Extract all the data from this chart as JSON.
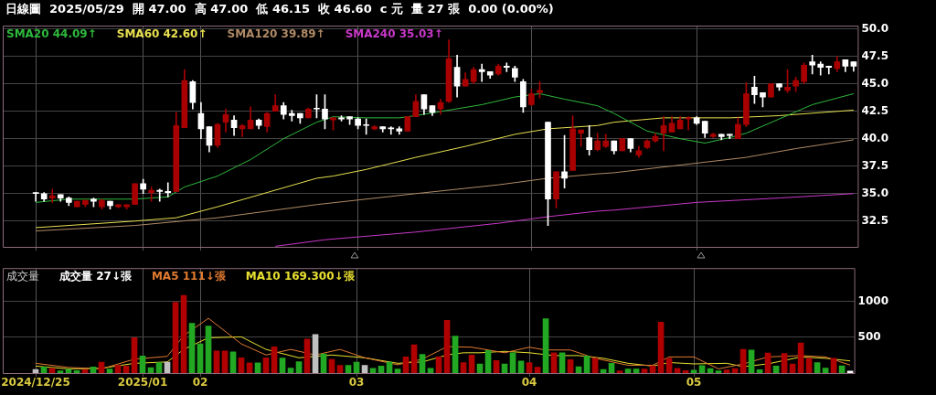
{
  "chart_data": [
    {
      "type": "candlestick",
      "title": "日線圖  2025/05/29  開 47.00  高 47.00  低 46.15  收 46.60  c 元  量 27 張  0.00 (0.00%)",
      "categories": [
        "2024/12/25",
        null,
        null,
        null,
        null,
        null,
        null,
        null,
        null,
        null,
        null,
        null,
        null,
        "2025/01",
        null,
        null,
        null,
        null,
        null,
        null,
        "02",
        null,
        null,
        null,
        null,
        null,
        null,
        null,
        null,
        null,
        null,
        null,
        null,
        null,
        null,
        null,
        null,
        null,
        null,
        "03",
        null,
        null,
        null,
        null,
        null,
        null,
        null,
        null,
        null,
        null,
        null,
        null,
        null,
        null,
        null,
        null,
        null,
        null,
        null,
        null,
        "04",
        null,
        null,
        null,
        null,
        null,
        null,
        null,
        null,
        null,
        null,
        null,
        null,
        null,
        null,
        null,
        null,
        null,
        null,
        null,
        "05",
        null,
        null,
        null,
        null,
        null,
        null,
        null,
        null,
        null,
        null,
        null,
        null,
        null,
        null,
        null,
        null,
        null,
        null,
        null
      ],
      "ohlc": [
        [
          35.1,
          35.1,
          34.3,
          35.0
        ],
        [
          35.0,
          35.1,
          34.3,
          34.5
        ],
        [
          34.6,
          35.4,
          34.2,
          34.8
        ],
        [
          34.9,
          34.9,
          34.3,
          34.6
        ],
        [
          34.6,
          34.7,
          33.9,
          34.2
        ],
        [
          33.8,
          34.3,
          33.8,
          34.3
        ],
        [
          34.0,
          34.4,
          33.8,
          34.4
        ],
        [
          34.5,
          34.6,
          33.8,
          34.3
        ],
        [
          33.8,
          34.5,
          33.6,
          34.4
        ],
        [
          34.3,
          34.3,
          33.6,
          33.9
        ],
        [
          33.8,
          34.0,
          33.7,
          34.0
        ],
        [
          33.8,
          34.0,
          33.6,
          34.0
        ],
        [
          34.0,
          35.9,
          34.0,
          35.9
        ],
        [
          35.9,
          36.3,
          35.0,
          35.4
        ],
        [
          35.1,
          35.6,
          34.3,
          35.3
        ],
        [
          35.3,
          35.4,
          34.3,
          35.2
        ],
        [
          35.2,
          36.0,
          34.7,
          35.1
        ],
        [
          35.2,
          42.4,
          35.2,
          41.2
        ],
        [
          41.0,
          46.3,
          41.0,
          45.3
        ],
        [
          45.2,
          45.3,
          42.7,
          43.3
        ],
        [
          42.3,
          43.3,
          40.0,
          40.9
        ],
        [
          41.1,
          41.1,
          38.8,
          39.4
        ],
        [
          39.4,
          41.4,
          39.2,
          41.3
        ],
        [
          41.5,
          42.7,
          40.6,
          42.2
        ],
        [
          41.7,
          42.1,
          40.3,
          41.0
        ],
        [
          40.9,
          41.3,
          40.2,
          41.2
        ],
        [
          40.9,
          42.9,
          40.9,
          41.7
        ],
        [
          41.7,
          41.8,
          40.9,
          41.2
        ],
        [
          41.1,
          42.4,
          40.6,
          42.3
        ],
        [
          42.5,
          44.0,
          42.5,
          43.0
        ],
        [
          43.0,
          43.3,
          41.8,
          42.2
        ],
        [
          42.3,
          42.6,
          41.6,
          42.1
        ],
        [
          42.3,
          42.3,
          41.4,
          41.9
        ],
        [
          41.9,
          42.8,
          41.9,
          42.7
        ],
        [
          42.7,
          44.0,
          41.9,
          42.7
        ],
        [
          42.7,
          44.0,
          40.9,
          41.8
        ],
        [
          41.7,
          41.9,
          40.8,
          41.9
        ],
        [
          41.9,
          42.1,
          41.6,
          41.8
        ],
        [
          42.0,
          42.0,
          41.3,
          41.8
        ],
        [
          41.8,
          41.9,
          40.9,
          41.2
        ],
        [
          41.2,
          41.8,
          40.4,
          41.2
        ],
        [
          40.9,
          41.2,
          40.8,
          41.1
        ],
        [
          41.1,
          41.1,
          40.6,
          40.9
        ],
        [
          40.9,
          41.1,
          40.4,
          40.9
        ],
        [
          40.9,
          41.1,
          40.4,
          40.7
        ],
        [
          40.7,
          42.0,
          40.7,
          42.0
        ],
        [
          42.0,
          44.0,
          42.0,
          43.4
        ],
        [
          44.0,
          44.0,
          42.2,
          42.7
        ],
        [
          43.0,
          43.0,
          42.1,
          42.4
        ],
        [
          42.7,
          43.6,
          42.2,
          43.3
        ],
        [
          43.4,
          49.0,
          43.3,
          47.3
        ],
        [
          46.5,
          47.6,
          43.8,
          44.8
        ],
        [
          44.8,
          46.0,
          44.8,
          45.4
        ],
        [
          45.2,
          46.5,
          45.0,
          46.3
        ],
        [
          46.3,
          46.8,
          45.2,
          46.1
        ],
        [
          46.1,
          46.1,
          45.5,
          45.8
        ],
        [
          45.9,
          46.8,
          45.8,
          46.6
        ],
        [
          46.6,
          46.9,
          46.1,
          46.5
        ],
        [
          46.4,
          46.6,
          45.2,
          45.6
        ],
        [
          45.2,
          45.4,
          42.4,
          42.9
        ],
        [
          43.1,
          44.5,
          43.0,
          44.1
        ],
        [
          44.2,
          45.2,
          43.7,
          44.4
        ],
        [
          41.5,
          41.5,
          32.1,
          34.5
        ],
        [
          34.5,
          37.0,
          33.7,
          37.0
        ],
        [
          37.0,
          40.3,
          35.5,
          36.4
        ],
        [
          37.1,
          42.1,
          37.1,
          40.9
        ],
        [
          40.5,
          40.8,
          39.3,
          40.8
        ],
        [
          40.1,
          41.2,
          38.5,
          39.0
        ],
        [
          39.0,
          40.5,
          38.9,
          39.8
        ],
        [
          39.3,
          40.4,
          39.2,
          39.8
        ],
        [
          39.8,
          39.8,
          38.6,
          38.9
        ],
        [
          38.9,
          40.0,
          38.9,
          40.0
        ],
        [
          40.0,
          40.0,
          38.8,
          39.1
        ],
        [
          38.5,
          39.3,
          38.3,
          38.9
        ],
        [
          39.2,
          39.9,
          39.1,
          39.8
        ],
        [
          39.8,
          40.5,
          39.7,
          40.2
        ],
        [
          40.5,
          42.0,
          38.9,
          41.2
        ],
        [
          40.6,
          42.0,
          40.6,
          41.4
        ],
        [
          40.9,
          42.0,
          40.9,
          41.7
        ],
        [
          41.8,
          42.0,
          40.8,
          41.9
        ],
        [
          41.9,
          42.0,
          41.3,
          41.4
        ],
        [
          41.6,
          41.6,
          40.1,
          40.5
        ],
        [
          40.2,
          40.5,
          40.1,
          40.4
        ],
        [
          40.4,
          40.4,
          39.9,
          40.2
        ],
        [
          40.4,
          40.4,
          40.0,
          40.3
        ],
        [
          40.0,
          41.9,
          40.0,
          41.3
        ],
        [
          41.3,
          45.1,
          41.1,
          44.1
        ],
        [
          44.7,
          45.7,
          43.2,
          44.0
        ],
        [
          44.2,
          44.2,
          42.9,
          43.8
        ],
        [
          43.8,
          45.0,
          43.8,
          45.0
        ],
        [
          45.0,
          45.0,
          44.4,
          44.7
        ],
        [
          44.4,
          46.3,
          44.2,
          44.7
        ],
        [
          44.8,
          45.6,
          44.3,
          45.3
        ],
        [
          45.2,
          46.9,
          45.0,
          46.7
        ],
        [
          47.0,
          47.6,
          45.9,
          46.7
        ],
        [
          46.8,
          47.0,
          45.8,
          46.5
        ],
        [
          46.6,
          46.6,
          45.9,
          46.5
        ],
        [
          46.4,
          47.5,
          46.1,
          47.0
        ],
        [
          47.2,
          47.2,
          46.1,
          46.6
        ],
        [
          47.0,
          47.0,
          46.15,
          46.6
        ]
      ],
      "series": [
        {
          "name": "SMA20 44.09↑",
          "type": "line",
          "color": "#2eb83c",
          "values": [
            34.2,
            null,
            null,
            null,
            34.5,
            null,
            null,
            null,
            34.5,
            null,
            null,
            null,
            34.5,
            null,
            null,
            null,
            34.7,
            null,
            35.6,
            null,
            null,
            null,
            36.6,
            null,
            null,
            null,
            38.1,
            null,
            null,
            null,
            40.0,
            null,
            null,
            null,
            41.5,
            null,
            42.0,
            null,
            null,
            null,
            41.9,
            null,
            null,
            null,
            41.9,
            null,
            42.1,
            null,
            null,
            null,
            42.6,
            null,
            null,
            null,
            43.1,
            null,
            null,
            null,
            43.8,
            null,
            null,
            44.1,
            null,
            null,
            43.6,
            null,
            null,
            null,
            43.0,
            null,
            42.3,
            null,
            null,
            null,
            40.7,
            null,
            null,
            null,
            40.0,
            null,
            null,
            39.6,
            null,
            null,
            40.1,
            null,
            40.5,
            null,
            null,
            null,
            41.8,
            null,
            null,
            null,
            43.1,
            null,
            null,
            null,
            null,
            44.1
          ]
        },
        {
          "name": "SMA60 42.60↑",
          "type": "line",
          "color": "#e8e050",
          "values": [
            31.9,
            null,
            null,
            null,
            null,
            null,
            null,
            null,
            null,
            null,
            null,
            null,
            32.5,
            null,
            null,
            null,
            null,
            32.8,
            null,
            null,
            null,
            null,
            33.8,
            null,
            null,
            null,
            null,
            null,
            35.1,
            null,
            null,
            null,
            null,
            null,
            36.4,
            null,
            36.6,
            null,
            null,
            null,
            37.2,
            null,
            null,
            null,
            null,
            null,
            38.3,
            null,
            null,
            null,
            null,
            null,
            39.3,
            null,
            null,
            null,
            null,
            null,
            40.4,
            null,
            null,
            null,
            40.9,
            null,
            null,
            null,
            null,
            null,
            41.2,
            null,
            41.5,
            null,
            null,
            null,
            null,
            null,
            41.9,
            null,
            null,
            null,
            null,
            null,
            null,
            null,
            41.9,
            null,
            null,
            null,
            null,
            null,
            42.1,
            null,
            null,
            null,
            null,
            null,
            null,
            null,
            null,
            42.6
          ]
        },
        {
          "name": "SMA120 39.89↑",
          "type": "line",
          "color": "#b08a66",
          "values": [
            31.6,
            null,
            null,
            null,
            null,
            null,
            null,
            null,
            null,
            null,
            null,
            null,
            32.1,
            null,
            null,
            null,
            null,
            null,
            null,
            null,
            null,
            null,
            32.8,
            null,
            null,
            null,
            null,
            null,
            null,
            null,
            null,
            null,
            null,
            null,
            34.0,
            null,
            null,
            null,
            null,
            null,
            null,
            null,
            null,
            null,
            null,
            null,
            35.0,
            null,
            null,
            null,
            null,
            null,
            null,
            null,
            null,
            null,
            35.8,
            null,
            null,
            null,
            null,
            null,
            36.4,
            null,
            null,
            null,
            null,
            null,
            36.8,
            null,
            36.9,
            null,
            null,
            null,
            null,
            null,
            null,
            null,
            37.6,
            null,
            null,
            null,
            null,
            null,
            null,
            null,
            38.3,
            null,
            null,
            null,
            null,
            null,
            39.1,
            null,
            null,
            null,
            null,
            null,
            null,
            39.9
          ]
        },
        {
          "name": "SMA240 35.03↑",
          "type": "line",
          "color": "#c838c8",
          "values": [
            null,
            null,
            null,
            null,
            null,
            null,
            null,
            null,
            null,
            null,
            null,
            null,
            null,
            null,
            null,
            null,
            null,
            null,
            null,
            null,
            null,
            null,
            null,
            null,
            null,
            null,
            null,
            null,
            null,
            30.2,
            null,
            null,
            null,
            null,
            null,
            30.8,
            null,
            null,
            null,
            null,
            null,
            null,
            null,
            null,
            null,
            null,
            31.5,
            null,
            null,
            null,
            null,
            null,
            null,
            null,
            null,
            null,
            32.3,
            null,
            null,
            null,
            null,
            null,
            32.9,
            null,
            null,
            null,
            null,
            null,
            33.4,
            null,
            33.5,
            null,
            null,
            null,
            null,
            null,
            null,
            null,
            null,
            null,
            34.2,
            null,
            null,
            null,
            null,
            null,
            null,
            null,
            null,
            null,
            34.6,
            null,
            null,
            null,
            null,
            null,
            null,
            null,
            null,
            35.0
          ]
        }
      ],
      "ylim": [
        30.15,
        50.3
      ],
      "yticks": [
        32.5,
        {
          "value": 35,
          "label": "35.0"
        },
        37.5,
        {
          "value": 40,
          "label": "40.0"
        },
        42.5,
        {
          "value": 45,
          "label": "45.0"
        },
        47.5,
        {
          "value": 50,
          "label": "50.0"
        }
      ],
      "grid": true,
      "tick_labels": "y",
      "marker": "none"
    },
    {
      "type": "bar",
      "title": "成交量",
      "annotations": [
        "成交量 27↓張"
      ],
      "categories": [
        "2024/12/25",
        null,
        null,
        null,
        null,
        null,
        null,
        null,
        null,
        null,
        null,
        null,
        null,
        "2025/01",
        null,
        null,
        null,
        null,
        null,
        null,
        "02",
        null,
        null,
        null,
        null,
        null,
        null,
        null,
        null,
        null,
        null,
        null,
        null,
        null,
        null,
        null,
        null,
        null,
        null,
        "03",
        null,
        null,
        null,
        null,
        null,
        null,
        null,
        null,
        null,
        null,
        null,
        null,
        null,
        null,
        null,
        null,
        null,
        null,
        null,
        null,
        "04",
        null,
        null,
        null,
        null,
        null,
        null,
        null,
        null,
        null,
        null,
        null,
        null,
        null,
        null,
        null,
        null,
        null,
        null,
        null,
        "05",
        null,
        null,
        null,
        null,
        null,
        null,
        null,
        null,
        null,
        null,
        null,
        null,
        null,
        null,
        null,
        null,
        null,
        null,
        null
      ],
      "series": [
        {
          "colors": [
            "#c0c0c0",
            "#22a822",
            "#b00000",
            "#22a822",
            "#22a822",
            "#22a822",
            "#b00000",
            "#22a822",
            "#b00000",
            "#22a822",
            "#b00000",
            "#b00000",
            "#b00000",
            "#22a822",
            "#22a822",
            "#22a822",
            "#c0c0c0",
            "#b00000",
            "#b00000",
            "#22a822",
            "#22a822",
            "#22a822",
            "#b00000",
            "#b00000",
            "#22a822",
            "#b00000",
            "#b00000",
            "#22a822",
            "#b00000",
            "#b00000",
            "#22a822",
            "#22a822",
            "#22a822",
            "#b00000",
            "#c0c0c0",
            "#22a822",
            "#b00000",
            "#b00000",
            "#22a822",
            "#22a822",
            "#c0c0c0",
            "#22a822",
            "#22a822",
            "#22a822",
            "#22a822",
            "#b00000",
            "#b00000",
            "#22a822",
            "#22a822",
            "#b00000",
            "#b00000",
            "#22a822",
            "#b00000",
            "#b00000",
            "#22a822",
            "#22a822",
            "#b00000",
            "#22a822",
            "#22a822",
            "#22a822",
            "#b00000",
            "#b00000",
            "#22a822",
            "#b00000",
            "#22a822",
            "#b00000",
            "#22a822",
            "#22a822",
            "#b00000",
            "#22a822",
            "#22a822",
            "#b00000",
            "#22a822",
            "#22a822",
            "#b00000",
            "#b00000",
            "#b00000",
            "#b00000",
            "#b00000",
            "#b00000",
            "#22a822",
            "#22a822",
            "#22a822",
            "#22a822",
            "#b00000",
            "#b00000",
            "#b00000",
            "#22a822",
            "#22a822",
            "#b00000",
            "#22a822",
            "#b00000",
            "#b00000",
            "#b00000",
            "#b00000",
            "#22a822",
            "#22a822",
            "#b00000",
            "#22a822",
            "#ffffff"
          ],
          "values": [
            50,
            85,
            66,
            31,
            54,
            35,
            47,
            85,
            151,
            58,
            109,
            97,
            493,
            237,
            74,
            147,
            151,
            989,
            1083,
            695,
            407,
            656,
            307,
            307,
            295,
            213,
            144,
            144,
            213,
            365,
            210,
            70,
            159,
            473,
            539,
            268,
            190,
            109,
            109,
            151,
            109,
            66,
            97,
            151,
            58,
            225,
            396,
            260,
            66,
            229,
            737,
            516,
            147,
            252,
            128,
            314,
            175,
            128,
            283,
            167,
            147,
            81,
            757,
            283,
            283,
            186,
            89,
            237,
            206,
            50,
            136,
            31,
            58,
            58,
            58,
            97,
            710,
            206,
            66,
            35,
            39,
            105,
            62,
            31,
            43,
            62,
            330,
            322,
            47,
            279,
            97,
            272,
            128,
            419,
            206,
            147,
            70,
            206,
            101,
            27
          ]
        },
        {
          "name": "MA5 111↓張",
          "type": "line",
          "color": "#e07a30",
          "values": [
            136,
            null,
            null,
            null,
            78,
            null,
            null,
            null,
            58,
            null,
            null,
            null,
            194,
            null,
            null,
            null,
            233,
            null,
            524,
            null,
            null,
            764,
            null,
            null,
            null,
            407,
            null,
            null,
            252,
            null,
            null,
            330,
            null,
            null,
            252,
            null,
            null,
            330,
            null,
            null,
            213,
            null,
            null,
            null,
            116,
            null,
            null,
            194,
            null,
            null,
            369,
            null,
            null,
            361,
            null,
            null,
            null,
            283,
            null,
            null,
            361,
            null,
            322,
            null,
            null,
            322,
            null,
            null,
            206,
            null,
            null,
            null,
            109,
            null,
            null,
            109,
            null,
            225,
            null,
            null,
            225,
            null,
            null,
            58,
            null,
            null,
            128,
            null,
            null,
            225,
            null,
            null,
            null,
            244,
            null,
            null,
            225,
            null,
            null,
            111
          ]
        },
        {
          "name": "MA10 169.300↓張",
          "type": "line",
          "color": "#e8e030",
          "values": [
            97,
            null,
            null,
            null,
            58,
            null,
            null,
            null,
            66,
            null,
            null,
            null,
            136,
            null,
            null,
            null,
            155,
            null,
            330,
            null,
            null,
            493,
            null,
            null,
            null,
            505,
            null,
            null,
            330,
            null,
            null,
            null,
            213,
            null,
            null,
            null,
            252,
            null,
            null,
            null,
            213,
            null,
            null,
            null,
            136,
            null,
            null,
            155,
            null,
            null,
            252,
            null,
            283,
            null,
            283,
            null,
            null,
            303,
            null,
            null,
            283,
            null,
            null,
            244,
            null,
            null,
            244,
            null,
            null,
            206,
            null,
            null,
            136,
            null,
            null,
            97,
            null,
            147,
            null,
            null,
            128,
            null,
            null,
            null,
            136,
            null,
            89,
            null,
            null,
            128,
            null,
            null,
            null,
            225,
            null,
            null,
            206,
            null,
            null,
            169.3
          ]
        }
      ],
      "ylim": [
        0,
        1465
      ],
      "yticks": [
        500,
        1000
      ],
      "grid": true,
      "marker": "none"
    }
  ]
}
